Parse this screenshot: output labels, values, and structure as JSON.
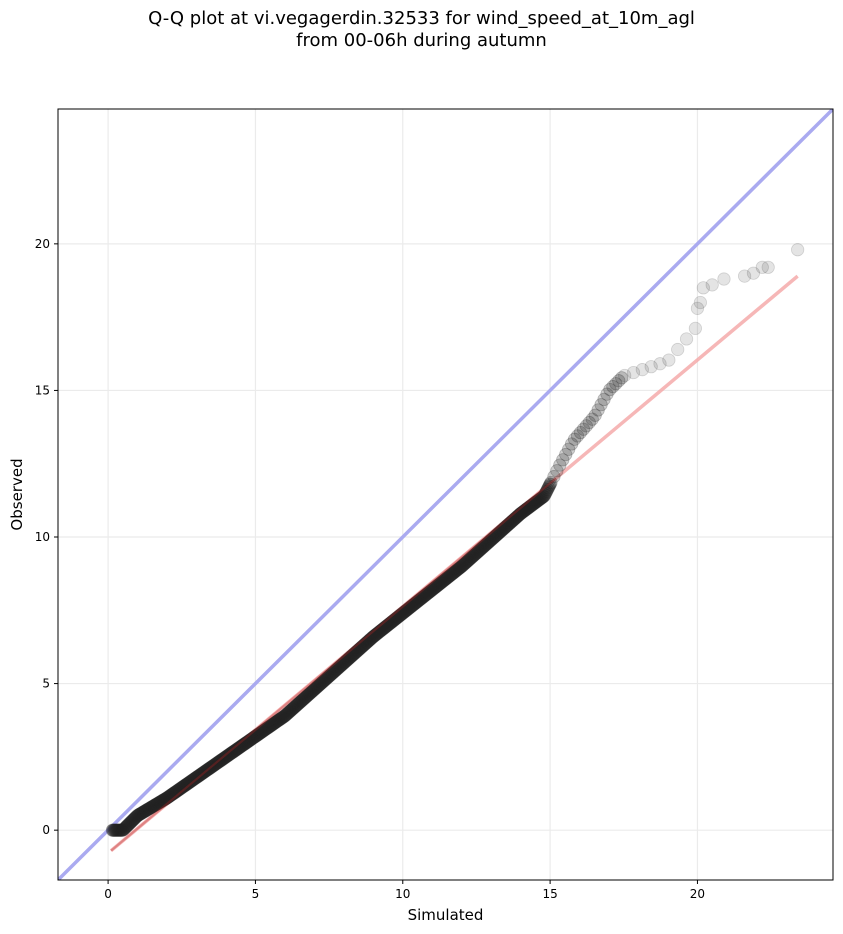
{
  "chart_data": {
    "type": "scatter",
    "title_lines": [
      "Q-Q plot at vi.vegagerdin.32533 for wind_speed_at_10m_agl",
      "from 00-06h during autumn"
    ],
    "xlabel": "Simulated",
    "ylabel": "Observed",
    "xlim": [
      -1.7,
      24.6
    ],
    "ylim": [
      -1.7,
      24.6
    ],
    "xticks": [
      0,
      5,
      10,
      15,
      20
    ],
    "yticks": [
      0,
      5,
      10,
      15,
      20
    ],
    "grid": true,
    "reference_line": {
      "name": "identity",
      "color": "#aaaaf0",
      "from": [
        -1.7,
        -1.7
      ],
      "to": [
        24.6,
        24.6
      ]
    },
    "fit_line": {
      "name": "fit",
      "color": "#f5aaaa",
      "from": [
        0.1,
        -0.7
      ],
      "to": [
        23.4,
        18.9
      ]
    },
    "point_color": "#222222",
    "series": [
      {
        "quantile_knots": [
          [
            0.15,
            0.0
          ],
          [
            0.5,
            0.0
          ],
          [
            0.8,
            0.3
          ],
          [
            1.0,
            0.5
          ],
          [
            2.0,
            1.1
          ],
          [
            3.0,
            1.8
          ],
          [
            4.0,
            2.5
          ],
          [
            5.0,
            3.2
          ],
          [
            6.0,
            3.9
          ],
          [
            7.0,
            4.8
          ],
          [
            8.0,
            5.7
          ],
          [
            9.0,
            6.6
          ],
          [
            10.0,
            7.4
          ],
          [
            11.0,
            8.2
          ],
          [
            12.0,
            9.0
          ],
          [
            13.0,
            9.9
          ],
          [
            14.0,
            10.8
          ],
          [
            14.8,
            11.4
          ],
          [
            15.3,
            12.4
          ],
          [
            15.8,
            13.3
          ],
          [
            16.5,
            14.1
          ],
          [
            17.0,
            15.0
          ],
          [
            17.5,
            15.5
          ],
          [
            19.0,
            16.0
          ],
          [
            20.0,
            17.2
          ]
        ],
        "tail_points": [
          [
            20.0,
            17.8
          ],
          [
            20.1,
            18.0
          ],
          [
            20.2,
            18.5
          ],
          [
            20.5,
            18.6
          ],
          [
            20.9,
            18.8
          ],
          [
            21.6,
            18.9
          ],
          [
            21.9,
            19.0
          ],
          [
            22.2,
            19.2
          ],
          [
            22.4,
            19.2
          ],
          [
            23.4,
            19.8
          ]
        ]
      }
    ]
  }
}
